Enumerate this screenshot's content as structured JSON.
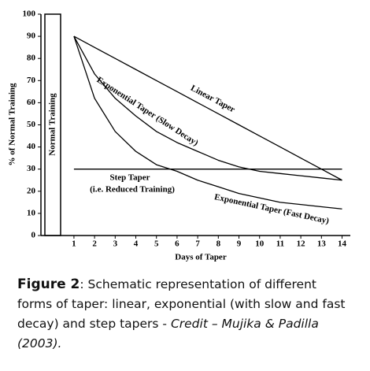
{
  "chart_data": {
    "type": "line",
    "x_label": "Days of Taper",
    "y_label": "% of Normal Training",
    "x": [
      1,
      2,
      3,
      4,
      5,
      6,
      7,
      8,
      9,
      10,
      11,
      12,
      13,
      14
    ],
    "series": [
      {
        "name": "Linear Taper",
        "color": "#000000",
        "values": [
          90,
          85,
          80,
          75,
          70,
          65,
          60,
          55,
          50,
          45,
          40,
          35,
          30,
          25
        ]
      },
      {
        "name": "Exponential Taper (Slow Decay)",
        "color": "#000000",
        "values": [
          90,
          73,
          62,
          54,
          47,
          42,
          38,
          34,
          31,
          29,
          28,
          27,
          26,
          25
        ]
      },
      {
        "name": "Exponential Taper (Fast Decay)",
        "color": "#000000",
        "values": [
          90,
          62,
          47,
          38,
          32,
          29,
          25,
          22,
          19,
          17,
          15,
          14,
          13,
          12
        ]
      },
      {
        "name": "Step Taper",
        "color": "#000000",
        "values": [
          30,
          30,
          30,
          30,
          30,
          30,
          30,
          30,
          30,
          30,
          30,
          30,
          30,
          30
        ]
      }
    ],
    "normal_training": {
      "label": "Normal Training",
      "value": 100
    },
    "step_note": "(i.e. Reduced Training)",
    "xlim": [
      -0.6,
      14.4
    ],
    "ylim": [
      0,
      100
    ],
    "xticks": [
      1,
      2,
      3,
      4,
      5,
      6,
      7,
      8,
      9,
      10,
      11,
      12,
      13,
      14
    ],
    "yticks": [
      0,
      10,
      20,
      30,
      40,
      50,
      60,
      70,
      80,
      90,
      100
    ]
  },
  "caption": {
    "label": "Figure 2",
    "text": ": Schematic representation of different forms of taper: linear, exponential (with slow and fast decay) and step tapers - ",
    "credit": "Credit – Mujika & Padilla (2003)."
  }
}
